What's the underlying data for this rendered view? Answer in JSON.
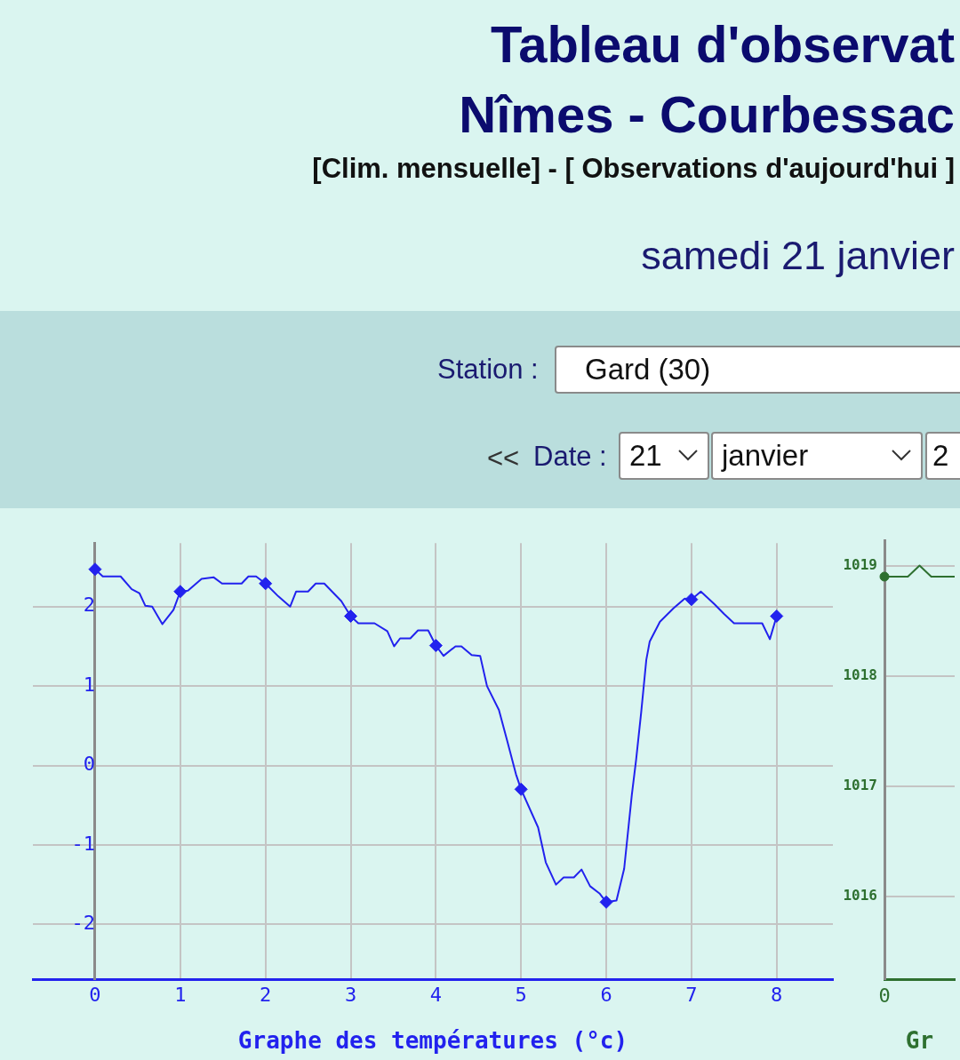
{
  "chart_data": [
    {
      "type": "line",
      "title": "Tableau d'observat",
      "subtitle": "Nîmes - Courbessac",
      "xlabel": "Graphe des températures (°c)",
      "annotations": [
        "[Clim. mensuelle] - [ Observations d'aujourd'hui ]",
        "samedi 21 janvier",
        "Station :",
        "Gard (30)",
        "<<",
        "Date :",
        "21",
        "janvier",
        "2"
      ],
      "series": [
        {
          "type": "line",
          "color": "#2222ee",
          "marker": "none",
          "x": [
            0,
            0.09,
            0.3,
            0.43,
            0.52,
            0.59,
            0.67,
            0.79,
            0.92,
            1,
            1.09,
            1.25,
            1.39,
            1.49,
            1.72,
            1.8,
            1.89,
            2,
            2.15,
            2.29,
            2.36,
            2.5,
            2.59,
            2.69,
            2.89,
            3,
            3.09,
            3.28,
            3.43,
            3.51,
            3.58,
            3.7,
            3.79,
            3.91,
            4,
            4.09,
            4.23,
            4.3,
            4.42,
            4.52,
            4.6,
            4.74,
            4.84,
            4.94,
            5,
            5.2,
            5.29,
            5.41,
            5.5,
            5.62,
            5.71,
            5.81,
            5.92,
            6,
            6.12,
            6.21,
            6.3,
            6.35,
            6.41,
            6.47,
            6.51,
            6.63,
            6.79,
            6.92,
            7,
            7.11,
            7.27,
            7.38,
            7.5,
            7.83,
            7.92,
            8
          ],
          "values": [
            2.47,
            2.38,
            2.38,
            2.22,
            2.17,
            2.01,
            2.0,
            1.78,
            1.96,
            2.19,
            2.2,
            2.35,
            2.37,
            2.29,
            2.29,
            2.38,
            2.38,
            2.29,
            2.13,
            2.0,
            2.19,
            2.19,
            2.29,
            2.29,
            2.07,
            1.88,
            1.79,
            1.79,
            1.69,
            1.5,
            1.6,
            1.6,
            1.7,
            1.7,
            1.51,
            1.38,
            1.5,
            1.5,
            1.39,
            1.38,
            1.0,
            0.7,
            0.3,
            -0.11,
            -0.3,
            -0.78,
            -1.22,
            -1.5,
            -1.41,
            -1.41,
            -1.31,
            -1.52,
            -1.61,
            -1.72,
            -1.7,
            -1.3,
            -0.37,
            0.07,
            0.67,
            1.33,
            1.56,
            1.81,
            1.98,
            2.1,
            2.09,
            2.19,
            2.03,
            1.91,
            1.79,
            1.79,
            1.59,
            1.88
          ]
        },
        {
          "type": "scatter",
          "color": "#2222ee",
          "marker": "diamond",
          "x": [
            0,
            1,
            2,
            3,
            4,
            5,
            6,
            7,
            8
          ],
          "values": [
            2.47,
            2.19,
            2.29,
            1.88,
            1.51,
            -0.3,
            -1.72,
            2.09,
            1.88
          ]
        }
      ],
      "xlim": [
        -0.73,
        8.66
      ],
      "xticks": [
        0,
        1,
        2,
        3,
        4,
        5,
        6,
        7,
        8
      ],
      "ylim": [
        -2.69,
        2.8
      ],
      "yticks": [
        -2,
        -1,
        0,
        1,
        2
      ],
      "grid": true,
      "legend": false
    },
    {
      "type": "line",
      "xlabel": "Gr",
      "series": [
        {
          "type": "line",
          "color": "#2e7030",
          "marker": "none",
          "values": [
            1018.9,
            1018.9,
            1018.9,
            1019.0,
            1018.9,
            1018.9,
            1018.9
          ]
        },
        {
          "type": "scatter",
          "color": "#2e7030",
          "marker": "circle",
          "values": [
            1018.9,
            null,
            null,
            null,
            null,
            null,
            null
          ]
        }
      ],
      "categories": [
        null,
        null,
        null,
        null,
        null,
        null,
        null
      ],
      "tick_labels": "y",
      "annotations": [
        "0"
      ],
      "ylim": [
        1015.25,
        1019.23
      ],
      "yticks": [
        1016,
        1017,
        1018,
        1019
      ],
      "grid": true,
      "legend": false
    }
  ]
}
